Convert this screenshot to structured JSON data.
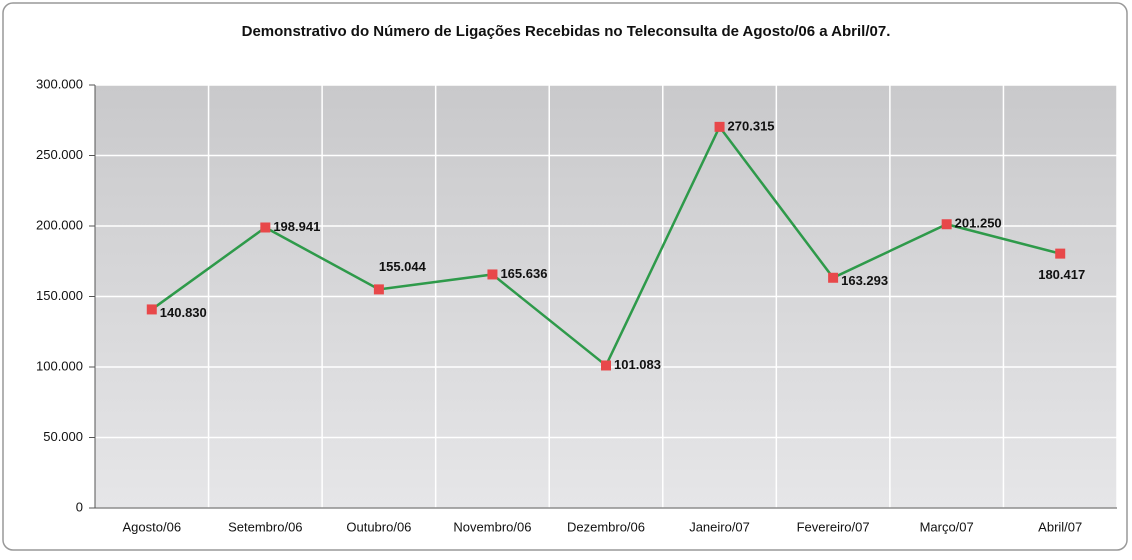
{
  "chart_data": {
    "type": "line",
    "title": "Demonstrativo do Número de Ligações Recebidas no Teleconsulta de Agosto/06 a Abril/07.",
    "categories": [
      "Agosto/06",
      "Setembro/06",
      "Outubro/06",
      "Novembro/06",
      "Dezembro/06",
      "Janeiro/07",
      "Fevereiro/07",
      "Março/07",
      "Abril/07"
    ],
    "series": [
      {
        "color": "#2e9a4a",
        "marker_color": "#e8484a",
        "values": [
          140830,
          198941,
          155044,
          165636,
          101083,
          270315,
          163293,
          201250,
          180417
        ],
        "value_labels": [
          "140.830",
          "198.941",
          "155.044",
          "165.636",
          "101.083",
          "270.315",
          "163.293",
          "201.250",
          "180.417"
        ]
      }
    ],
    "ylim": [
      0,
      300000
    ],
    "yticks": [
      0,
      {
        "value": 50000,
        "label": "50.000"
      },
      {
        "value": 100000,
        "label": "100.000"
      },
      {
        "value": 150000,
        "label": "150.000"
      },
      {
        "value": 200000,
        "label": "200.000"
      },
      {
        "value": 250000,
        "label": "250.000"
      },
      {
        "value": 300000,
        "label": "300.000"
      }
    ],
    "grid": true
  }
}
